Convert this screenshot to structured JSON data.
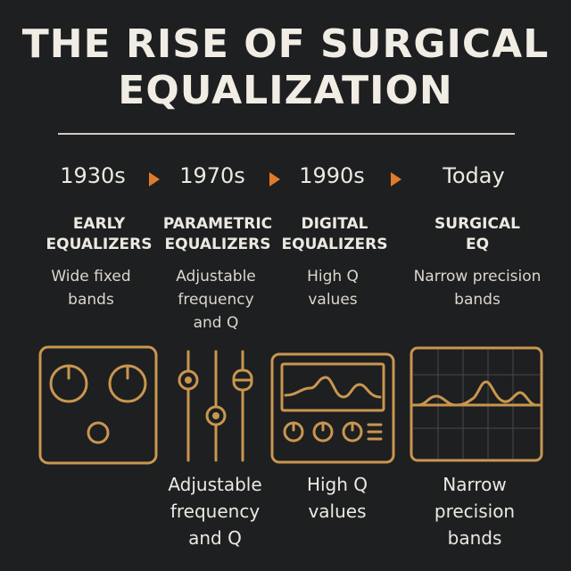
{
  "title": {
    "line1": "THE RISE OF SURGICAL",
    "line2": "EQUALIZATION"
  },
  "timeline": [
    {
      "era": "1930s",
      "name": [
        "EARLY",
        "EQUALIZERS"
      ],
      "desc": [
        "Wide fixed",
        "bands"
      ]
    },
    {
      "era": "1970s",
      "name": [
        "PARAMETRIC",
        "EQUALIZERS"
      ],
      "desc": [
        "Adjustable",
        "frequency",
        "and Q"
      ]
    },
    {
      "era": "1990s",
      "name": [
        "DIGITAL",
        "EQUALIZERS"
      ],
      "desc": [
        "High Q",
        "values"
      ]
    },
    {
      "era": "Today",
      "name": [
        "SURGICAL",
        "EQ"
      ],
      "desc": [
        "Narrow precision",
        "bands"
      ]
    }
  ],
  "captions": [
    {
      "lines": [
        "Adjustable",
        "frequency",
        "and Q"
      ]
    },
    {
      "lines": [
        "High Q",
        "values"
      ]
    },
    {
      "lines": [
        "Narrow",
        "precision",
        "bands"
      ]
    }
  ],
  "icons": [
    "knob-panel-icon",
    "fader-sliders-icon",
    "digital-eq-display-icon",
    "spectrum-curve-icon"
  ],
  "colors": {
    "background": "#1d1f21",
    "accent": "#e07b2b",
    "line_art": "#c9964f",
    "text": "#ece9e1"
  }
}
